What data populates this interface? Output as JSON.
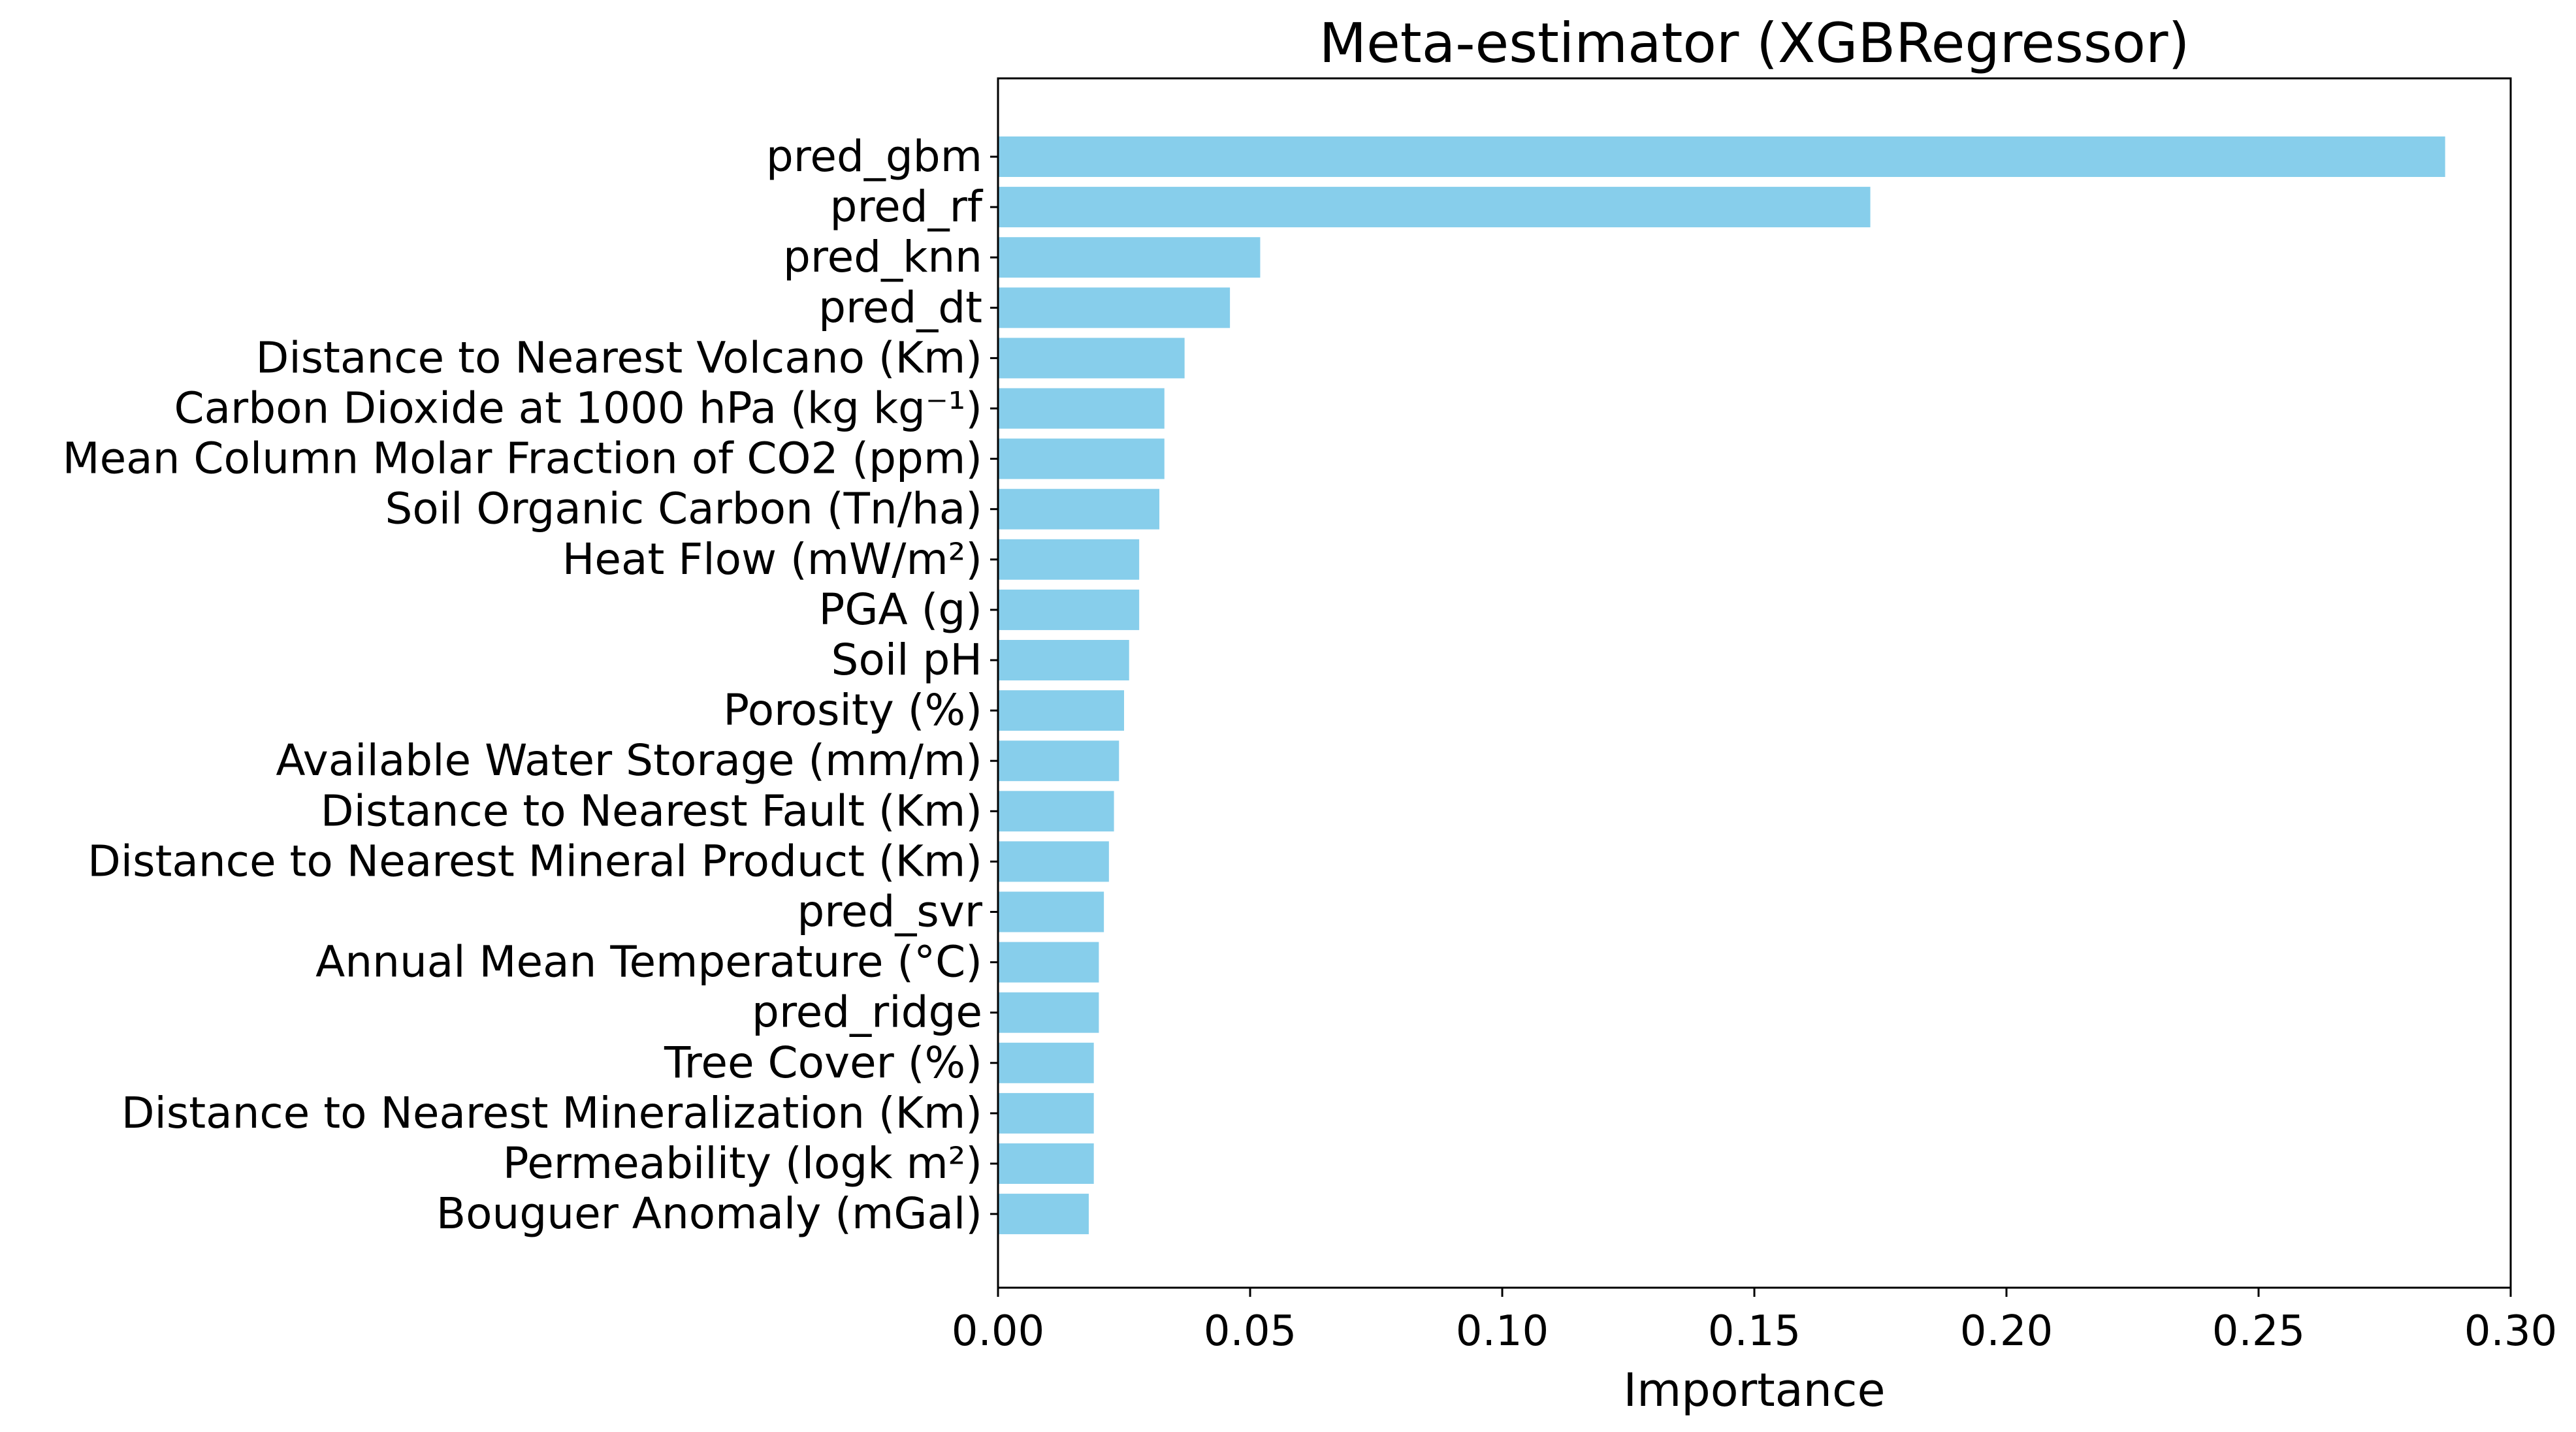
{
  "chart_data": {
    "type": "bar",
    "orientation": "horizontal",
    "title": "Meta-estimator (XGBRegressor)",
    "xlabel": "Importance",
    "ylabel": "",
    "xlim": [
      0,
      0.3
    ],
    "xticks": [
      "0.00",
      "0.05",
      "0.10",
      "0.15",
      "0.20",
      "0.25",
      "0.30"
    ],
    "bar_color": "#87CEEB",
    "grid": false,
    "categories": [
      "pred_gbm",
      "pred_rf",
      "pred_knn",
      "pred_dt",
      "Distance to Nearest Volcano (Km)",
      "Carbon Dioxide at 1000 hPa (kg kg⁻¹)",
      "Mean Column Molar Fraction of CO2 (ppm)",
      "Soil Organic Carbon (Tn/ha)",
      "Heat Flow (mW/m²)",
      "PGA (g)",
      "Soil pH",
      "Porosity (%)",
      "Available Water Storage (mm/m)",
      "Distance to Nearest Fault (Km)",
      "Distance to Nearest Mineral Product (Km)",
      "pred_svr",
      "Annual Mean Temperature (°C)",
      "pred_ridge",
      "Tree Cover (%)",
      "Distance to Nearest Mineralization (Km)",
      "Permeability (logk m²)",
      "Bouguer Anomaly (mGal)"
    ],
    "values": [
      0.287,
      0.173,
      0.052,
      0.046,
      0.037,
      0.033,
      0.033,
      0.032,
      0.028,
      0.028,
      0.026,
      0.025,
      0.024,
      0.023,
      0.022,
      0.021,
      0.02,
      0.02,
      0.019,
      0.019,
      0.019,
      0.018
    ]
  }
}
